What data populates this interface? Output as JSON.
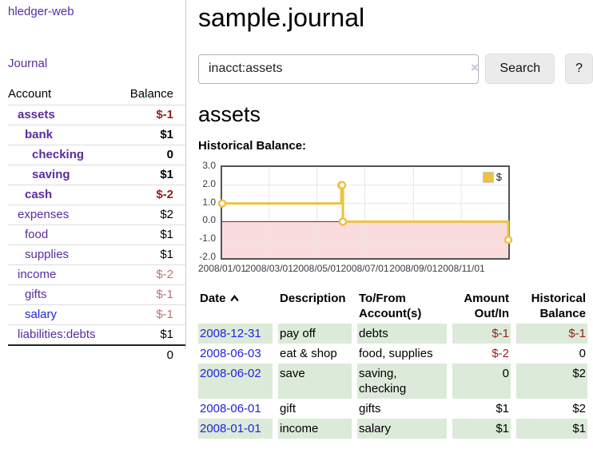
{
  "app": {
    "title": "hledger-web",
    "nav_journal": "Journal"
  },
  "colors": {
    "link_visited": "#5a2ca0",
    "link_unvisited": "#2222dd",
    "negative_strong": "#941f1f",
    "negative_muted": "#c17070",
    "row_stripe": "#dcead9",
    "series_gold": "#edc240"
  },
  "accounts_panel": {
    "headers": {
      "account": "Account",
      "balance": "Balance"
    },
    "rows": [
      {
        "name": "assets",
        "balance": "$-1",
        "level": 1,
        "bold": true,
        "balance_style": "neg-strong",
        "link_style": "visited"
      },
      {
        "name": "bank",
        "balance": "$1",
        "level": 2,
        "bold": true,
        "balance_style": "pos",
        "link_style": "visited"
      },
      {
        "name": "checking",
        "balance": "0",
        "level": 3,
        "bold": true,
        "balance_style": "pos",
        "link_style": "visited"
      },
      {
        "name": "saving",
        "balance": "$1",
        "level": 3,
        "bold": true,
        "balance_style": "pos",
        "link_style": "visited"
      },
      {
        "name": "cash",
        "balance": "$-2",
        "level": 2,
        "bold": true,
        "balance_style": "neg-strong",
        "link_style": "visited"
      },
      {
        "name": "expenses",
        "balance": "$2",
        "level": 1,
        "bold": false,
        "balance_style": "pos",
        "link_style": "visited"
      },
      {
        "name": "food",
        "balance": "$1",
        "level": 2,
        "bold": false,
        "balance_style": "pos",
        "link_style": "visited"
      },
      {
        "name": "supplies",
        "balance": "$1",
        "level": 2,
        "bold": false,
        "balance_style": "pos",
        "link_style": "visited"
      },
      {
        "name": "income",
        "balance": "$-2",
        "level": 1,
        "bold": false,
        "balance_style": "neg-muted",
        "link_style": "visited"
      },
      {
        "name": "gifts",
        "balance": "$-1",
        "level": 2,
        "bold": false,
        "balance_style": "neg-muted",
        "link_style": "visited"
      },
      {
        "name": "salary",
        "balance": "$-1",
        "level": 2,
        "bold": false,
        "balance_style": "neg-muted",
        "link_style": "unvisited"
      },
      {
        "name": "liabilities:debts",
        "balance": "$1",
        "level": 1,
        "bold": false,
        "balance_style": "pos",
        "link_style": "visited"
      }
    ],
    "total": "0"
  },
  "main": {
    "title": "sample.journal",
    "search": {
      "value": "inacct:assets",
      "clear_label": "×",
      "search_button": "Search",
      "help_button": "?"
    },
    "account_heading": "assets",
    "chart_label": "Historical Balance:"
  },
  "chart_data": {
    "type": "line",
    "step": true,
    "title": "Historical Balance:",
    "series": [
      {
        "name": "$",
        "color": "#edc240",
        "points": [
          {
            "x": "2008-01-01",
            "y": 1
          },
          {
            "x": "2008-06-01",
            "y": 2
          },
          {
            "x": "2008-06-02",
            "y": 2
          },
          {
            "x": "2008-06-03",
            "y": 0
          },
          {
            "x": "2008-12-31",
            "y": -1
          }
        ]
      }
    ],
    "xlim": [
      "2008-01-01",
      "2008-12-31"
    ],
    "ylim": [
      -2,
      3
    ],
    "yticks": [
      {
        "v": 3,
        "label": "3.0"
      },
      {
        "v": 2,
        "label": "2.0"
      },
      {
        "v": 1,
        "label": "1.0"
      },
      {
        "v": 0,
        "label": "0.0"
      },
      {
        "v": -1,
        "label": "-1.0"
      },
      {
        "v": -2,
        "label": "-2.0"
      }
    ],
    "xticks": [
      {
        "v": "2008-01-01",
        "label": "2008/01/01"
      },
      {
        "v": "2008-03-01",
        "label": "2008/03/01"
      },
      {
        "v": "2008-05-01",
        "label": "2008/05/01"
      },
      {
        "v": "2008-07-01",
        "label": "2008/07/01"
      },
      {
        "v": "2008-09-01",
        "label": "2008/09/01"
      },
      {
        "v": "2008-11-01",
        "label": "2008/11/01"
      }
    ],
    "legend": {
      "position": "top-right",
      "entries": [
        "$"
      ]
    },
    "grid": true,
    "colors": {
      "grid": "#e6e6e6",
      "border": "#545454",
      "zero_line": "#aa0000",
      "negative_region": "#fbdcdc",
      "marker_fill": "#ffffff"
    }
  },
  "register": {
    "headers": [
      {
        "lines": [
          "Date"
        ],
        "align": "left",
        "sort": "asc"
      },
      {
        "lines": [
          "Description"
        ],
        "align": "left"
      },
      {
        "lines": [
          "To/From",
          "Account(s)"
        ],
        "align": "left"
      },
      {
        "lines": [
          "Amount",
          "Out/In"
        ],
        "align": "right"
      },
      {
        "lines": [
          "Historical",
          "Balance"
        ],
        "align": "right"
      }
    ],
    "rows": [
      {
        "date": "2008-12-31",
        "description": "pay off",
        "accounts": "debts",
        "amount": "$-1",
        "amount_negative": true,
        "balance": "$-1",
        "balance_negative": true
      },
      {
        "date": "2008-06-03",
        "description": "eat & shop",
        "accounts": "food, supplies",
        "amount": "$-2",
        "amount_negative": true,
        "balance": "0",
        "balance_negative": false
      },
      {
        "date": "2008-06-02",
        "description": "save",
        "accounts": "saving, checking",
        "amount": "0",
        "amount_negative": false,
        "balance": "$2",
        "balance_negative": false
      },
      {
        "date": "2008-06-01",
        "description": "gift",
        "accounts": "gifts",
        "amount": "$1",
        "amount_negative": false,
        "balance": "$2",
        "balance_negative": false
      },
      {
        "date": "2008-01-01",
        "description": "income",
        "accounts": "salary",
        "amount": "$1",
        "amount_negative": false,
        "balance": "$1",
        "balance_negative": false
      }
    ]
  }
}
